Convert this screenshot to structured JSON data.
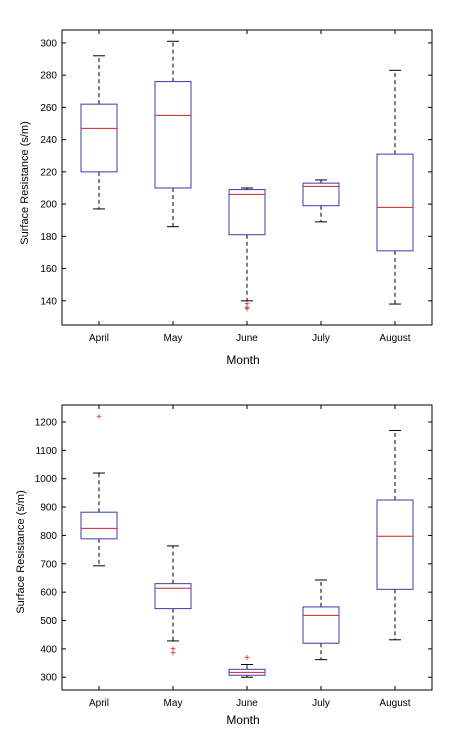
{
  "colors": {
    "box": "#3b3bb0",
    "median": "#d02020",
    "whisker": "#000000",
    "outlier": "#d02020",
    "frame": "#000000"
  },
  "chart_data": [
    {
      "type": "boxplot",
      "xlabel": "Month",
      "ylabel": "Surface Resistance (s/m)",
      "categories": [
        "April",
        "May",
        "June",
        "July",
        "August"
      ],
      "ylim": [
        125,
        308
      ],
      "yticks": [
        140,
        160,
        180,
        200,
        220,
        240,
        260,
        280,
        300
      ],
      "grid": false,
      "boxes": [
        {
          "category": "April",
          "whisker_low": 197,
          "q1": 220,
          "median": 247,
          "q3": 262,
          "whisker_high": 292,
          "outliers": []
        },
        {
          "category": "May",
          "whisker_low": 186,
          "q1": 210,
          "median": 255,
          "q3": 276,
          "whisker_high": 301,
          "outliers": []
        },
        {
          "category": "June",
          "whisker_low": 140,
          "q1": 181,
          "median": 206,
          "q3": 209,
          "whisker_high": 210,
          "outliers": [
            138,
            136,
            135
          ]
        },
        {
          "category": "July",
          "whisker_low": 189,
          "q1": 199,
          "median": 211,
          "q3": 213,
          "whisker_high": 215,
          "outliers": []
        },
        {
          "category": "August",
          "whisker_low": 138,
          "q1": 171,
          "median": 198,
          "q3": 231,
          "whisker_high": 283,
          "outliers": []
        }
      ]
    },
    {
      "type": "boxplot",
      "xlabel": "Month",
      "ylabel": "Surface Resistance (s/m)",
      "categories": [
        "April",
        "May",
        "June",
        "July",
        "August"
      ],
      "ylim": [
        255,
        1260
      ],
      "yticks": [
        300,
        400,
        500,
        600,
        700,
        800,
        900,
        1000,
        1100,
        1200
      ],
      "grid": false,
      "boxes": [
        {
          "category": "April",
          "whisker_low": 693,
          "q1": 788,
          "median": 825,
          "q3": 882,
          "whisker_high": 1020,
          "outliers": [
            1220
          ]
        },
        {
          "category": "May",
          "whisker_low": 428,
          "q1": 542,
          "median": 614,
          "q3": 630,
          "whisker_high": 763,
          "outliers": [
            400,
            385
          ]
        },
        {
          "category": "June",
          "whisker_low": 300,
          "q1": 307,
          "median": 317,
          "q3": 328,
          "whisker_high": 345,
          "outliers": [
            370
          ]
        },
        {
          "category": "July",
          "whisker_low": 362,
          "q1": 420,
          "median": 518,
          "q3": 548,
          "whisker_high": 643,
          "outliers": []
        },
        {
          "category": "August",
          "whisker_low": 432,
          "q1": 610,
          "median": 797,
          "q3": 925,
          "whisker_high": 1170,
          "outliers": []
        }
      ]
    }
  ]
}
